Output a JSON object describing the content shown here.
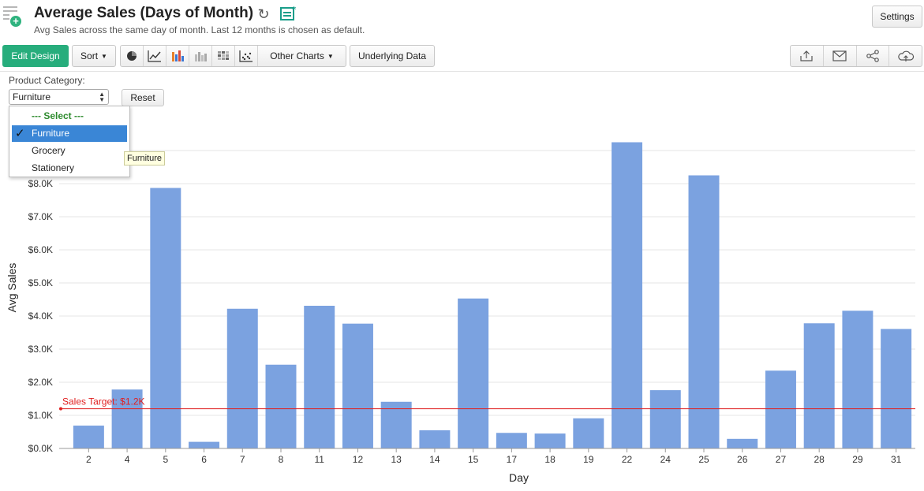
{
  "header": {
    "title": "Average Sales (Days of Month)",
    "subtitle": "Avg Sales across the same day of month. Last 12 months is chosen as default.",
    "settings_label": "Settings"
  },
  "toolbar": {
    "edit_design_label": "Edit Design",
    "sort_label": "Sort",
    "other_charts_label": "Other Charts",
    "underlying_data_label": "Underlying Data",
    "chart_icons": [
      "pie-chart-icon",
      "line-chart-icon",
      "bar-chart-icon",
      "stacked-bar-icon",
      "heatmap-icon",
      "scatter-chart-icon"
    ],
    "share_icons": [
      "export-icon",
      "email-icon",
      "share-icon",
      "publish-icon"
    ]
  },
  "filter": {
    "label": "Product Category:",
    "selected": "Furniture",
    "reset_label": "Reset",
    "options": {
      "header": "--- Select ---",
      "items": [
        "Furniture",
        "Grocery",
        "Stationery"
      ]
    },
    "tooltip": "Furniture"
  },
  "colors": {
    "bar": "#7ba2e0",
    "target_line": "#e02020",
    "accent": "#27ad7c",
    "selected": "#3a86d6"
  },
  "chart_data": {
    "type": "bar",
    "categories": [
      "2",
      "4",
      "5",
      "6",
      "7",
      "8",
      "11",
      "12",
      "13",
      "14",
      "15",
      "17",
      "18",
      "19",
      "22",
      "24",
      "25",
      "26",
      "27",
      "28",
      "29",
      "31"
    ],
    "values": [
      690,
      1780,
      7870,
      200,
      4220,
      2530,
      4310,
      3770,
      1410,
      550,
      4530,
      470,
      450,
      910,
      9250,
      1760,
      8250,
      290,
      2350,
      3780,
      4160,
      3610
    ],
    "xlabel": "Day",
    "ylabel": "Avg Sales",
    "ylim": [
      0,
      9000
    ],
    "yticks": [
      0,
      1000,
      2000,
      3000,
      4000,
      5000,
      6000,
      7000,
      8000
    ],
    "ytick_labels": [
      "$0.0K",
      "$1.0K",
      "$2.0K",
      "$3.0K",
      "$4.0K",
      "$5.0K",
      "$6.0K",
      "$7.0K",
      "$8.0K"
    ],
    "grid": true,
    "reference_line": {
      "value": 1200,
      "label": "Sales Target: $1.2K"
    }
  }
}
